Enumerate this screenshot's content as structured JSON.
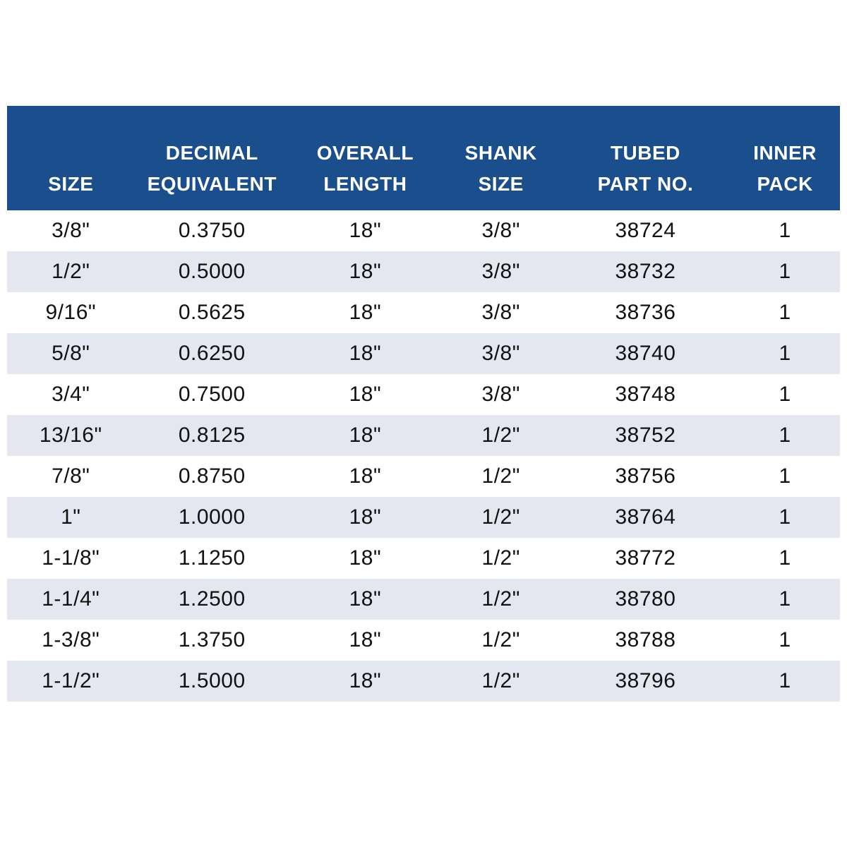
{
  "colors": {
    "header_bg": "#1a4e8c",
    "header_text": "#ffffff",
    "row_alt_bg": "#e5e7f0",
    "body_text": "#111111"
  },
  "chart_data": {
    "type": "table",
    "columns": [
      "SIZE",
      "DECIMAL EQUIVALENT",
      "OVERALL LENGTH",
      "SHANK SIZE",
      "TUBED PART NO.",
      "INNER PACK"
    ],
    "columns_display": [
      "SIZE",
      "DECIMAL\nEQUIVALENT",
      "OVERALL\nLENGTH",
      "SHANK\nSIZE",
      "TUBED\nPART NO.",
      "INNER\nPACK"
    ],
    "rows": [
      [
        "3/8\"",
        "0.3750",
        "18\"",
        "3/8\"",
        "38724",
        "1"
      ],
      [
        "1/2\"",
        "0.5000",
        "18\"",
        "3/8\"",
        "38732",
        "1"
      ],
      [
        "9/16\"",
        "0.5625",
        "18\"",
        "3/8\"",
        "38736",
        "1"
      ],
      [
        "5/8\"",
        "0.6250",
        "18\"",
        "3/8\"",
        "38740",
        "1"
      ],
      [
        "3/4\"",
        "0.7500",
        "18\"",
        "3/8\"",
        "38748",
        "1"
      ],
      [
        "13/16\"",
        "0.8125",
        "18\"",
        "1/2\"",
        "38752",
        "1"
      ],
      [
        "7/8\"",
        "0.8750",
        "18\"",
        "1/2\"",
        "38756",
        "1"
      ],
      [
        "1\"",
        "1.0000",
        "18\"",
        "1/2\"",
        "38764",
        "1"
      ],
      [
        "1-1/8\"",
        "1.1250",
        "18\"",
        "1/2\"",
        "38772",
        "1"
      ],
      [
        "1-1/4\"",
        "1.2500",
        "18\"",
        "1/2\"",
        "38780",
        "1"
      ],
      [
        "1-3/8\"",
        "1.3750",
        "18\"",
        "1/2\"",
        "38788",
        "1"
      ],
      [
        "1-1/2\"",
        "1.5000",
        "18\"",
        "1/2\"",
        "38796",
        "1"
      ]
    ]
  }
}
